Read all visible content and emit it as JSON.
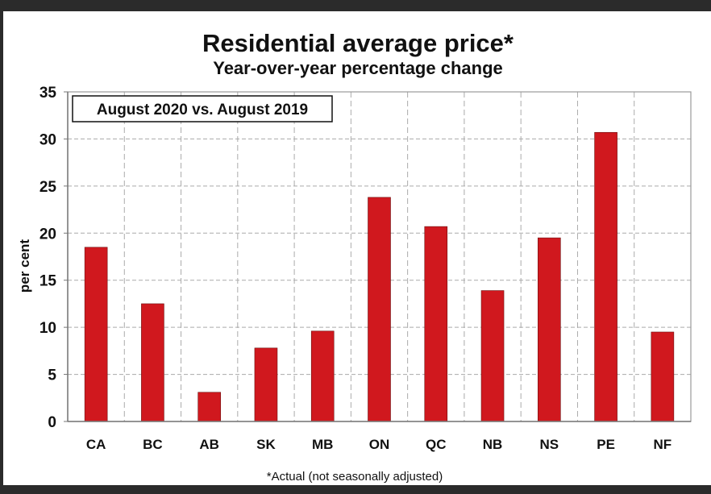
{
  "chart_data": {
    "type": "bar",
    "title": "Residential average price*",
    "subtitle": "Year-over-year percentage change",
    "annotation": "August 2020 vs. August 2019",
    "footnote": "*Actual (not seasonally adjusted)",
    "xlabel": "",
    "ylabel": "per cent",
    "ylim": [
      0,
      35
    ],
    "yticks": [
      0,
      5,
      10,
      15,
      20,
      25,
      30,
      35
    ],
    "grid": true,
    "categories": [
      "CA",
      "BC",
      "AB",
      "SK",
      "MB",
      "ON",
      "QC",
      "NB",
      "NS",
      "PE",
      "NF"
    ],
    "values": [
      18.5,
      12.5,
      3.1,
      7.8,
      9.6,
      23.8,
      20.7,
      13.9,
      19.5,
      30.7,
      9.5
    ],
    "bar_color": "#d0181e"
  }
}
